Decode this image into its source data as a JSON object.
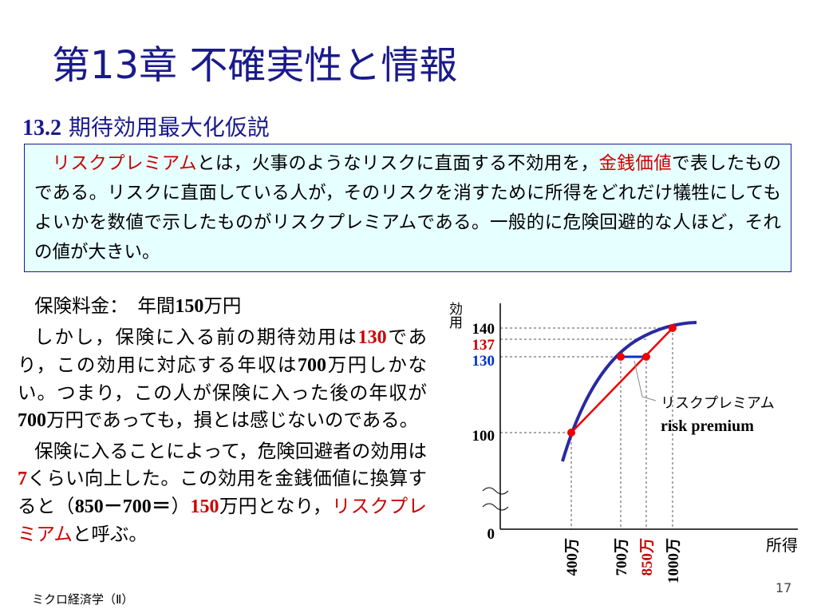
{
  "header": {
    "title": "第13章 不確実性と情報",
    "section_number": "13.2",
    "section_title": "期待効用最大化仮説"
  },
  "box": {
    "segments": [
      {
        "text": "リスクプレミアム",
        "color": "#cc0000"
      },
      {
        "text": "とは，火事のようなリスクに直面する不効用を，"
      },
      {
        "text": "金銭価値",
        "color": "#cc0000"
      },
      {
        "text": "で表したものである。リスクに直面している人が，そのリスクを消すために所得をどれだけ犠牲にしてもよいかを数値で示したものがリスクプレミアムである。一般的に危険回避的な人ほど，それの値が大きい。"
      }
    ]
  },
  "body": {
    "paragraphs": [
      {
        "segments": [
          {
            "text": "保険料金：　年間"
          },
          {
            "text": "150",
            "bold": true
          },
          {
            "text": "万円"
          }
        ]
      },
      {
        "segments": [
          {
            "text": "しかし，保険に入る前の期待効用は"
          },
          {
            "text": "130",
            "bold": true,
            "color": "#cc0000"
          },
          {
            "text": "であり，この効用に対応する年収は"
          },
          {
            "text": "700",
            "bold": true
          },
          {
            "text": "万円しかない。つまり，この人が保険に入った後の年収が"
          },
          {
            "text": "700",
            "bold": true
          },
          {
            "text": "万円であっても，損とは感じないのである。"
          }
        ]
      },
      {
        "segments": [
          {
            "text": "保険に入ることによって，危険回避者の効用は"
          },
          {
            "text": "7",
            "bold": true,
            "color": "#cc0000"
          },
          {
            "text": "くらい向上した。この効用を金銭価値に換算すると（"
          },
          {
            "text": "850－700＝",
            "bold": true
          },
          {
            "text": "）"
          },
          {
            "text": "150",
            "bold": true,
            "color": "#cc0000"
          },
          {
            "text": "万円となり，"
          },
          {
            "text": "リスクプレミアム",
            "color": "#cc0000"
          },
          {
            "text": "と呼ぶ。"
          }
        ]
      }
    ]
  },
  "diagram": {
    "y_axis_label": "効用",
    "x_axis_label": "所得",
    "y_labels": [
      {
        "text": "140"
      },
      {
        "text": "137",
        "color": "#cc0000"
      },
      {
        "text": "130",
        "color": "#0033cc"
      },
      {
        "text": "100"
      },
      {
        "text": "0"
      }
    ],
    "x_labels": [
      {
        "text": "400万"
      },
      {
        "text": "700万"
      },
      {
        "text": "850万",
        "color": "#cc0000"
      },
      {
        "text": "1000万"
      }
    ],
    "annotation": "リスクプレミアム",
    "annotation_en": "risk premium"
  },
  "footer": {
    "course": "ミクロ経済学（Ⅱ）",
    "page": "17"
  }
}
